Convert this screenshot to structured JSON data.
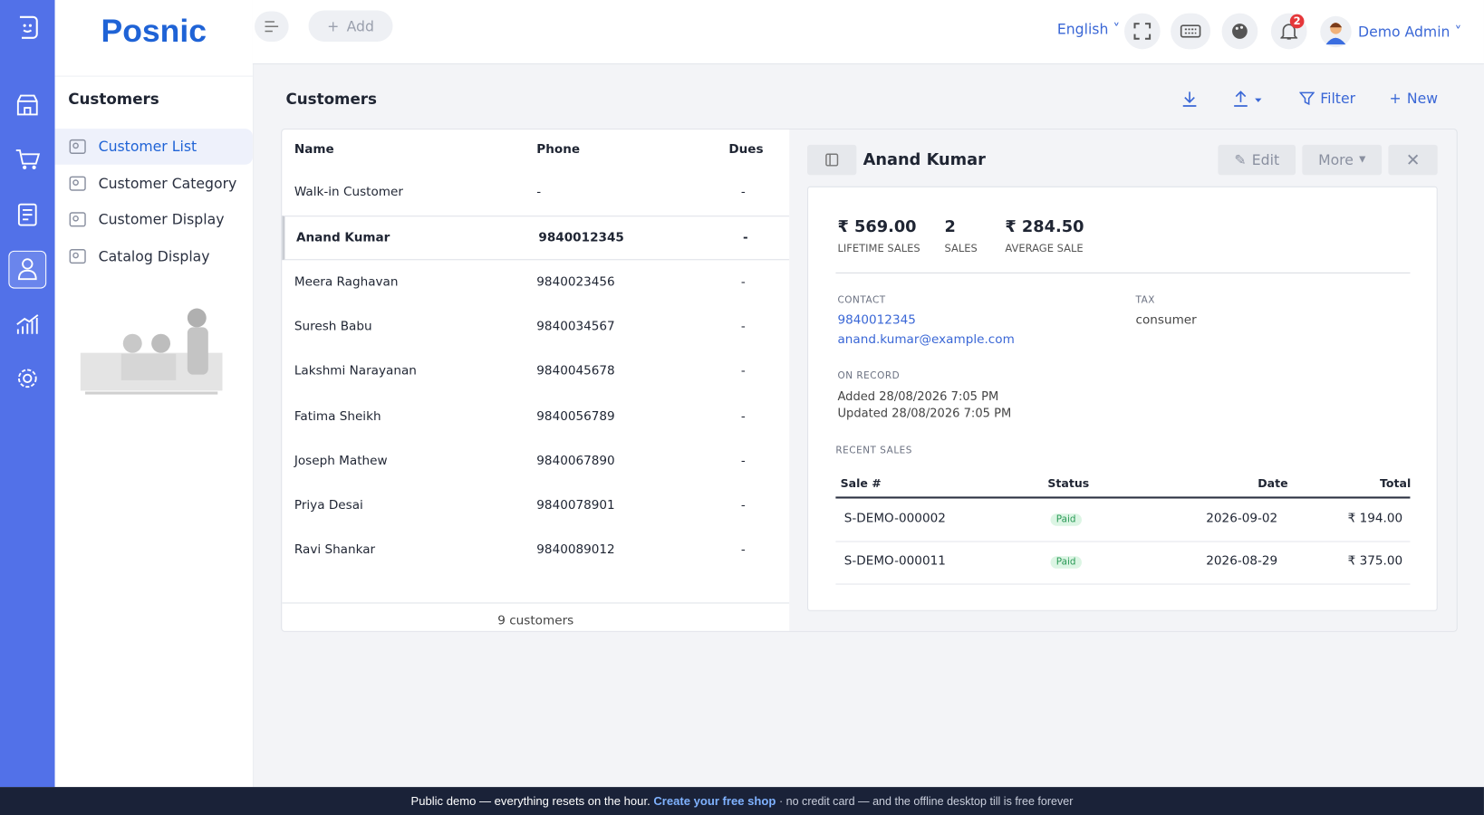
{
  "brand": "Posnic",
  "topbar": {
    "add": "Add",
    "language": "English",
    "notifications": "2",
    "user": "Demo Admin"
  },
  "sidebar": {
    "title": "Customers",
    "menu": [
      "Customer List",
      "Customer Category",
      "Customer Display",
      "Catalog Display"
    ]
  },
  "page": {
    "title": "Customers",
    "actions": [
      "Filter",
      "New"
    ]
  },
  "table": {
    "headers": [
      "Name",
      "Phone",
      "Dues"
    ],
    "rows": [
      [
        "Walk-in Customer",
        "-",
        "-"
      ],
      [
        "Anand Kumar",
        "9840012345",
        "-"
      ],
      [
        "Meera Raghavan",
        "9840023456",
        "-"
      ],
      [
        "Suresh Babu",
        "9840034567",
        "-"
      ],
      [
        "Lakshmi Narayanan",
        "9840045678",
        "-"
      ],
      [
        "Fatima Sheikh",
        "9840056789",
        "-"
      ],
      [
        "Joseph Mathew",
        "9840067890",
        "-"
      ],
      [
        "Priya Desai",
        "9840078901",
        "-"
      ],
      [
        "Ravi Shankar",
        "9840089012",
        "-"
      ]
    ],
    "footer": "9 customers"
  },
  "detail": {
    "name": "Anand Kumar",
    "buttons": [
      "Edit",
      "More"
    ],
    "stats": [
      {
        "value": "₹ 569.00",
        "label": "LIFETIME SALES"
      },
      {
        "value": "2",
        "label": "SALES"
      },
      {
        "value": "₹ 284.50",
        "label": "AVERAGE SALE"
      }
    ],
    "contact": {
      "label": "CONTACT",
      "phone": "9840012345",
      "email": "anand.kumar@example.com"
    },
    "tax": {
      "label": "TAX",
      "value": "consumer"
    },
    "record": {
      "label": "ON RECORD",
      "added": "Added 28/08/2026 7:05 PM",
      "updated": "Updated 28/08/2026 7:05 PM"
    },
    "recent": {
      "label": "RECENT SALES",
      "headers": [
        "Sale #",
        "Status",
        "Date",
        "Total"
      ],
      "rows": [
        [
          "S-DEMO-000002",
          "Paid",
          "2026-09-02",
          "₹ 194.00"
        ],
        [
          "S-DEMO-000011",
          "Paid",
          "2026-08-29",
          "₹ 375.00"
        ]
      ]
    }
  },
  "banner": {
    "text": "Public demo — everything resets on the hour.",
    "link": "Create your free shop",
    "rest": "· no credit card — and the offline desktop till is free forever"
  }
}
